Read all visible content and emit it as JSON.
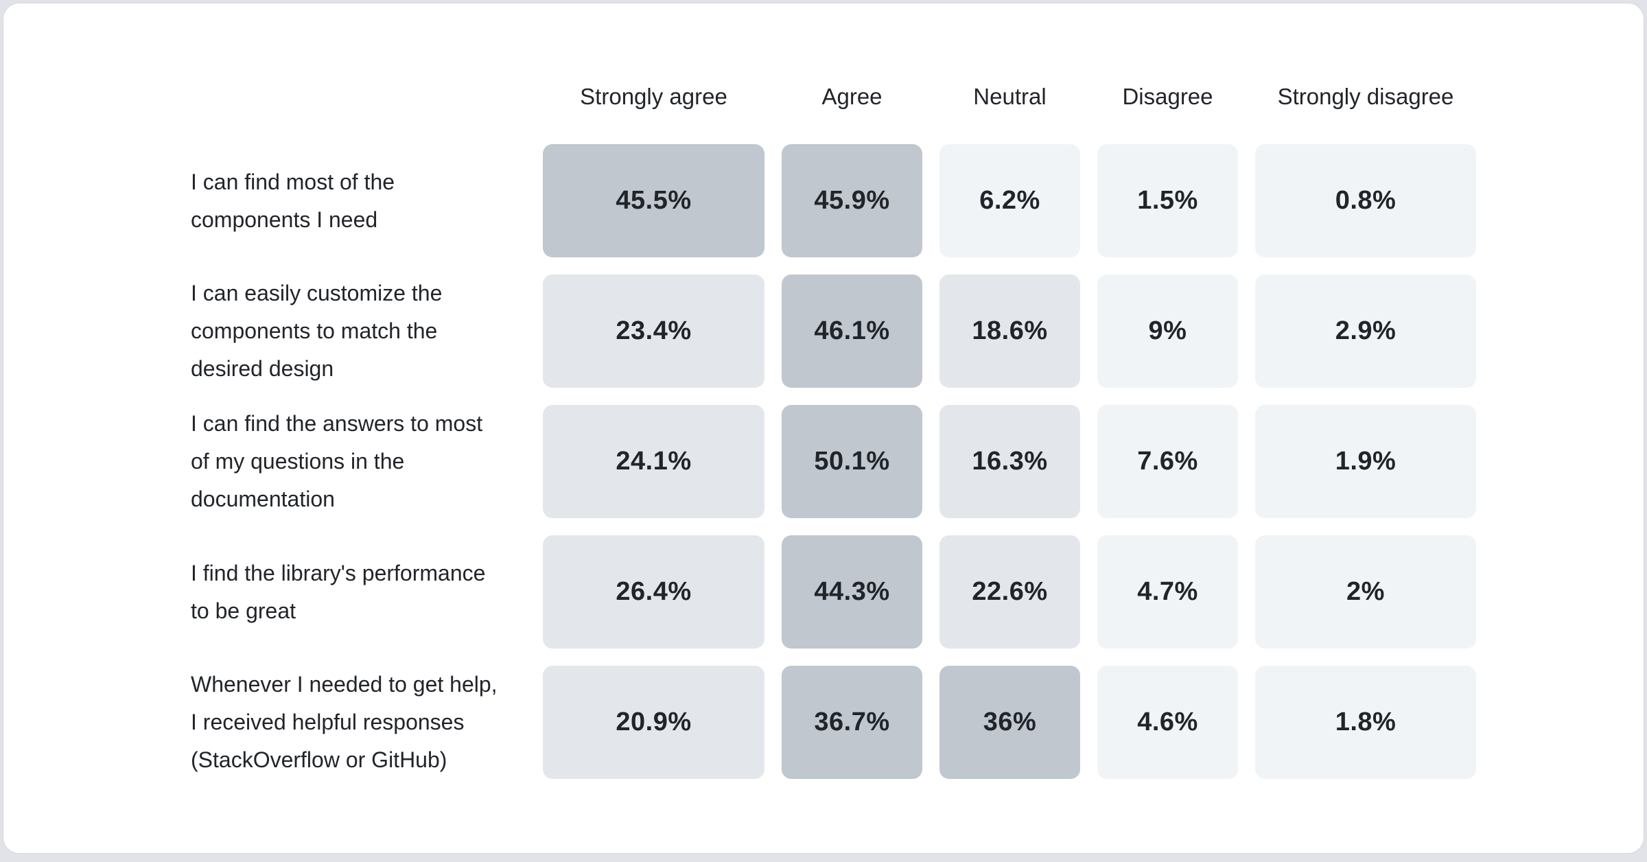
{
  "page": {
    "background_color": "#e1e3e8",
    "card_background": "#ffffff",
    "card_border_color": "#d5d8dd",
    "text_color": "#212429"
  },
  "chart_data": {
    "type": "heatmap",
    "title": "",
    "legend": "none",
    "value_unit": "%",
    "categories": [
      "Strongly agree",
      "Agree",
      "Neutral",
      "Disagree",
      "Strongly disagree"
    ],
    "rows": [
      {
        "label": "I can find most of the\ncomponents I need",
        "values": [
          45.5,
          45.9,
          6.2,
          1.5,
          0.8
        ],
        "display": [
          "45.5%",
          "45.9%",
          "6.2%",
          "1.5%",
          "0.8%"
        ]
      },
      {
        "label": "I can easily customize the\ncomponents to match the\ndesired design",
        "values": [
          23.4,
          46.1,
          18.6,
          9,
          2.9
        ],
        "display": [
          "23.4%",
          "46.1%",
          "18.6%",
          "9%",
          "2.9%"
        ]
      },
      {
        "label": "I can find the answers to most\nof my questions in the\ndocumentation",
        "values": [
          24.1,
          50.1,
          16.3,
          7.6,
          1.9
        ],
        "display": [
          "24.1%",
          "50.1%",
          "16.3%",
          "7.6%",
          "1.9%"
        ]
      },
      {
        "label": "I find the library's performance\nto be great",
        "values": [
          26.4,
          44.3,
          22.6,
          4.7,
          2
        ],
        "display": [
          "26.4%",
          "44.3%",
          "22.6%",
          "4.7%",
          "2%"
        ]
      },
      {
        "label": "Whenever I needed to get help,\nI received helpful responses\n(StackOverflow or GitHub)",
        "values": [
          20.9,
          36.7,
          36,
          4.6,
          1.8
        ],
        "display": [
          "20.9%",
          "36.7%",
          "36%",
          "4.6%",
          "1.8%"
        ]
      }
    ],
    "color_scale": [
      {
        "min": 30,
        "color": "#c0c7cf"
      },
      {
        "min": 10,
        "color": "#e3e6eb"
      },
      {
        "min": 0,
        "color": "#f1f4f7"
      }
    ]
  }
}
